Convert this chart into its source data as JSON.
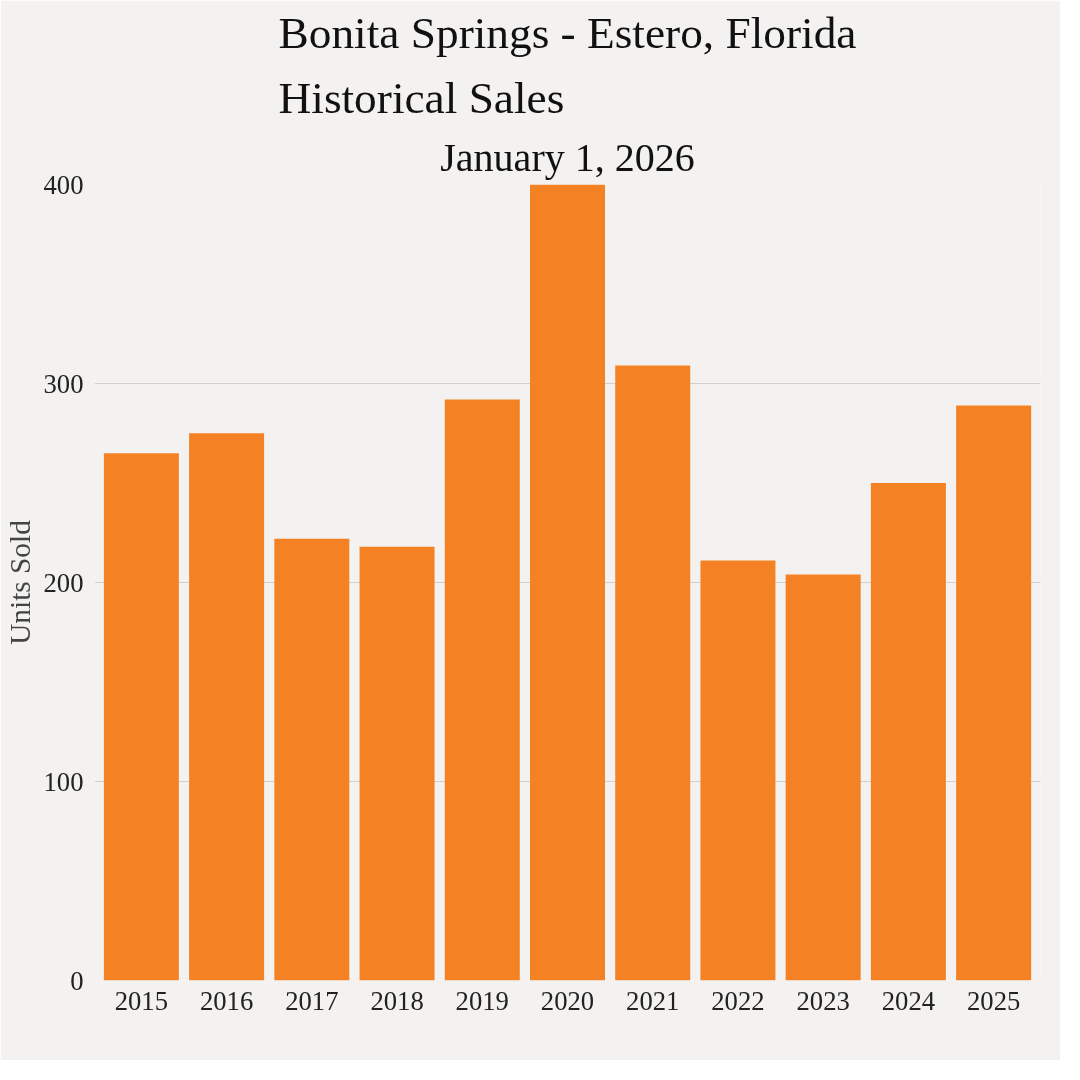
{
  "chart_data": {
    "type": "bar",
    "title": "Bonita Springs - Estero, Florida\nHistorical Sales",
    "subtitle": "January 1, 2026",
    "ylabel": "Units Sold",
    "categories": [
      "2015",
      "2016",
      "2017",
      "2018",
      "2019",
      "2020",
      "2021",
      "2022",
      "2023",
      "2024",
      "2025"
    ],
    "values": [
      265,
      275,
      222,
      218,
      292,
      400,
      309,
      211,
      204,
      250,
      289
    ],
    "color": "#f48225",
    "ylim": [
      0,
      400
    ],
    "yticks": [
      0,
      100,
      200,
      300,
      400
    ],
    "grid": "y"
  }
}
